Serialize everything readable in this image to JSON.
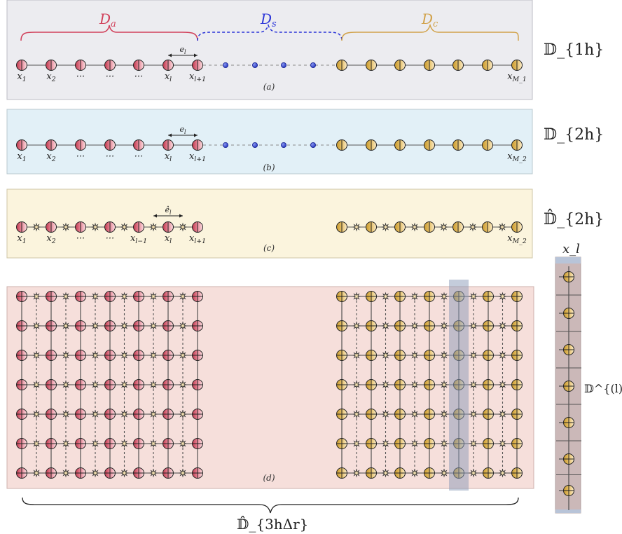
{
  "colors": {
    "red_dark": "#c0394d",
    "red_light": "#f9d6d8",
    "gold_dark": "#c99a2e",
    "gold_light": "#f8e6b6",
    "blue_node": "#3a4fd8",
    "da_label": "#d1405a",
    "ds_label": "#2b35d8",
    "dc_label": "#d1a24a",
    "panel_a": "#ececf0",
    "panel_b": "#e2f0f7",
    "panel_c": "#fbf4dd",
    "panel_d": "#f6dfdb",
    "highlight": "#8a9ab8"
  },
  "panel_a": {
    "brace_labels": [
      "D_a",
      "D_s",
      "D_c"
    ],
    "edge_label": "e_l",
    "node_labels": [
      "x_1",
      "x_2",
      "···",
      "···",
      "···",
      "x_l",
      "x_{l+1}",
      "x_{M_1}"
    ],
    "caption": "(a)",
    "set_label": "𝔻_{1h}"
  },
  "panel_b": {
    "edge_label": "e_l",
    "node_labels": [
      "x_1",
      "x_2",
      "···",
      "···",
      "···",
      "x_l",
      "x_{l+1}",
      "x_{M_2}"
    ],
    "caption": "(b)",
    "set_label": "𝔻_{2h}"
  },
  "panel_c": {
    "edge_label": "ê_l",
    "node_labels": [
      "x_1",
      "x_2",
      "···",
      "···",
      "x_{l−1}",
      "x_l",
      "x_{l+1}",
      "x_{M_2}"
    ],
    "caption": "(c)",
    "set_label": "𝔻̂_{2h}"
  },
  "panel_d": {
    "caption": "(d)",
    "set_label": "𝔻̂_{3hΔr}"
  },
  "column": {
    "top_label": "x_l",
    "side_label": "𝔻^{(l)}_{Δr}"
  }
}
